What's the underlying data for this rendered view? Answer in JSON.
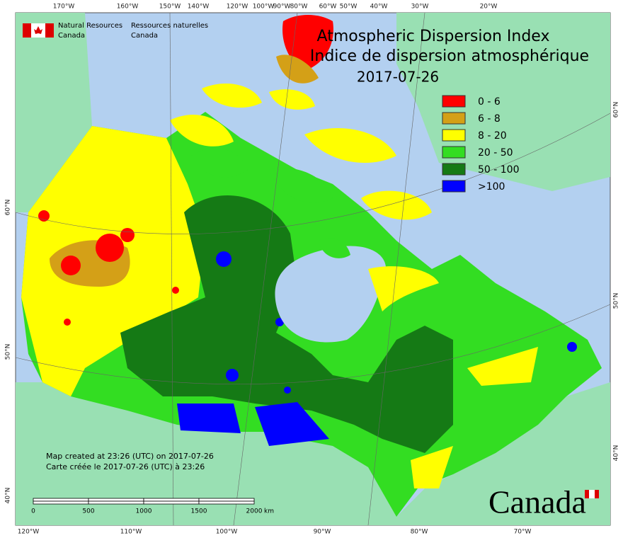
{
  "header": {
    "dept_en": [
      "Natural Resources",
      "Canada"
    ],
    "dept_fr": [
      "Ressources naturelles",
      "Canada"
    ]
  },
  "title": {
    "en": "Atmospheric Dispersion Index",
    "fr": "Indice de dispersion atmosphérique",
    "date": "2017-07-26"
  },
  "legend": [
    {
      "label": "0 - 6",
      "color": "#ff0000"
    },
    {
      "label": "6 - 8",
      "color": "#d4a017"
    },
    {
      "label": "8 - 20",
      "color": "#ffff00"
    },
    {
      "label": "20 - 50",
      "color": "#33dd22"
    },
    {
      "label": "50 - 100",
      "color": "#157a15"
    },
    {
      "label": ">100",
      "color": "#0000ff"
    }
  ],
  "graticule": {
    "top": [
      "170°W",
      "160°W",
      "150°W",
      "140°W",
      "120°W",
      "100°W",
      "90°W",
      "80°W",
      "60°W",
      "50°W",
      "40°W",
      "30°W",
      "20°W"
    ],
    "bottom": [
      "120°W",
      "110°W",
      "100°W",
      "90°W",
      "80°W",
      "70°W"
    ],
    "left": [
      "60°N",
      "50°N",
      "40°N"
    ],
    "right": [
      "60°N",
      "50°N",
      "40°N"
    ]
  },
  "notes": [
    "Map created at 23:26 (UTC) on 2017-07-26",
    "Carte créée le 2017-07-26 (UTC) à 23:26"
  ],
  "scale_bar": {
    "labels": [
      0,
      500,
      1000,
      1500,
      2000
    ],
    "unit": "km"
  },
  "wordmark": "Canada"
}
